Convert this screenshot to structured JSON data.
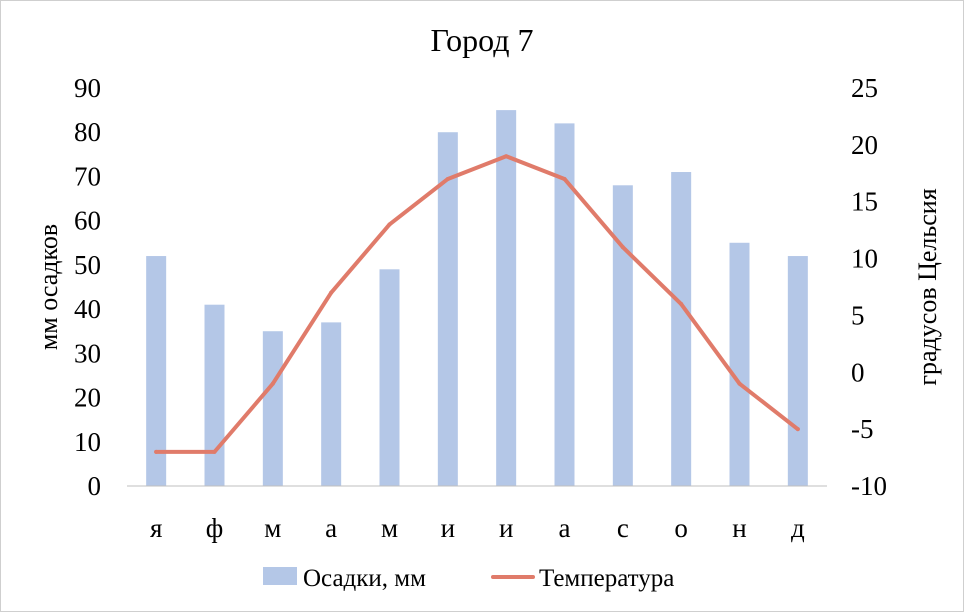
{
  "chart_data": {
    "type": "bar",
    "title": "Город 7",
    "categories": [
      "я",
      "ф",
      "м",
      "а",
      "м",
      "и",
      "и",
      "а",
      "с",
      "о",
      "н",
      "д"
    ],
    "series": [
      {
        "name": "Осадки, мм",
        "type": "bar",
        "axis": "left",
        "color": "#b4c7e7",
        "values": [
          52,
          41,
          35,
          37,
          49,
          80,
          85,
          82,
          68,
          71,
          55,
          52
        ]
      },
      {
        "name": "Температура",
        "type": "line",
        "axis": "right",
        "color": "#e07b6a",
        "values": [
          -7,
          -7,
          -1,
          7,
          13,
          17,
          19,
          17,
          11,
          6,
          -1,
          -5
        ]
      }
    ],
    "ylabel": "мм осадков",
    "ylabel_right": "градусов Цельсия",
    "ylim": [
      0,
      90
    ],
    "ylim_right": [
      -10,
      25
    ],
    "yticks": [
      "0",
      "10",
      "20",
      "30",
      "40",
      "50",
      "60",
      "70",
      "80",
      "90"
    ],
    "yticks_right": [
      "-10",
      "-5",
      "0",
      "5",
      "10",
      "15",
      "20",
      "25"
    ],
    "grid": false,
    "legend": "bottom"
  }
}
